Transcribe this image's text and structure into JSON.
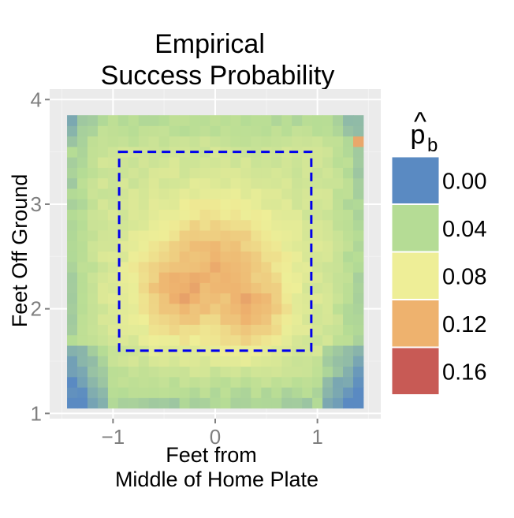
{
  "chart_data": {
    "type": "heatmap",
    "title_lines": [
      "Empirical",
      "Success Probability"
    ],
    "xlabel_lines": [
      "Feet from",
      "Middle of Home Plate"
    ],
    "ylabel": "Feet Off Ground",
    "xlim": [
      -1.62,
      1.62
    ],
    "ylim": [
      0.95,
      4.1
    ],
    "x_ticks": [
      {
        "value": -1,
        "label": "−1"
      },
      {
        "value": 0,
        "label": "0"
      },
      {
        "value": 1,
        "label": "1"
      }
    ],
    "y_ticks": [
      {
        "value": 1,
        "label": "1"
      },
      {
        "value": 2,
        "label": "2"
      },
      {
        "value": 3,
        "label": "3"
      },
      {
        "value": 4,
        "label": "4"
      }
    ],
    "grid": true,
    "panel_background": "#ebebeb",
    "grid_major_color": "#ffffff",
    "grid_minor_color": "#f2f2f2",
    "heatmap_extent": {
      "x": [
        -1.45,
        1.45
      ],
      "y": [
        1.05,
        3.85
      ]
    },
    "heatmap_grid": {
      "nx": 29,
      "ny": 28
    },
    "strike_zone": {
      "x": [
        -0.94,
        0.94
      ],
      "y": [
        1.6,
        3.5
      ],
      "color": "#0000ee",
      "style": "dashed"
    },
    "legend": {
      "title_main": "p",
      "title_hat": "^",
      "title_sub": "b",
      "position": "right",
      "items": [
        {
          "label": "0.00",
          "color": "#5a8ac2"
        },
        {
          "label": "0.04",
          "color": "#b5dc95"
        },
        {
          "label": "0.08",
          "color": "#eeee97"
        },
        {
          "label": "0.12",
          "color": "#eeb26e"
        },
        {
          "label": "0.16",
          "color": "#c85a55"
        }
      ]
    }
  }
}
